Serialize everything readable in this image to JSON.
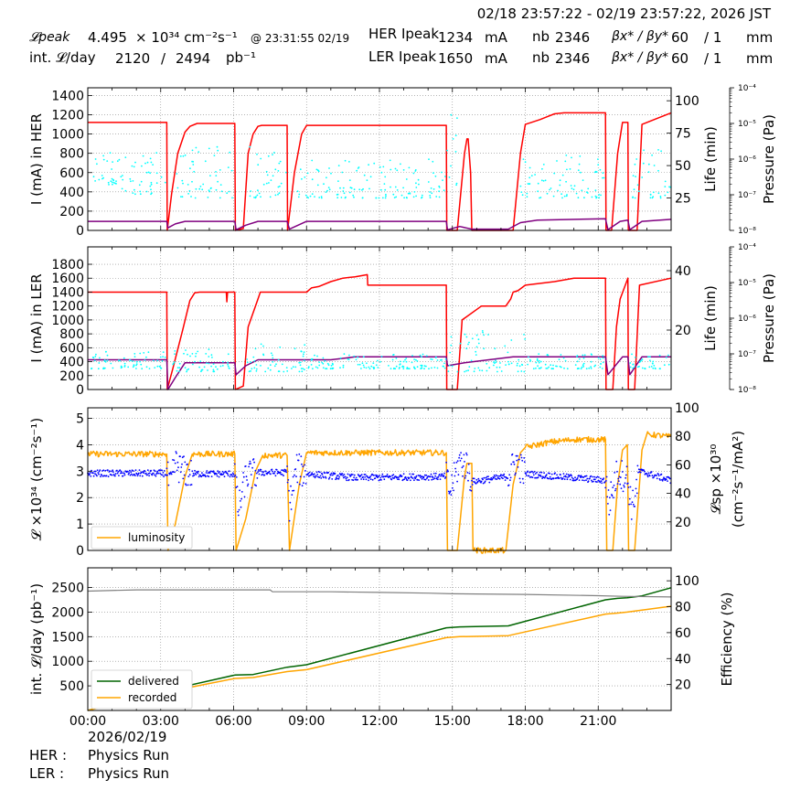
{
  "header": {
    "range": "02/18 23:57:22 - 02/19 23:57:22, 2026 JST",
    "lpeak_label": "𝓛peak",
    "lpeak_value": "4.495",
    "lpeak_unit": "× 10³⁴ cm⁻²s⁻¹",
    "lpeak_time": "@ 23:31:55 02/19",
    "intl_label": "int. 𝓛/day",
    "intl_value": "2120",
    "intl_sep": "/",
    "intl_value2": "2494",
    "intl_unit": "pb⁻¹",
    "her_label": "HER Ipeak",
    "her_value": "1234",
    "ler_label": "LER Ipeak",
    "ler_value": "1650",
    "ma": "mA",
    "nb_label": "nb",
    "her_nb": "2346",
    "ler_nb": "2346",
    "beta_label": "βx* / βy*",
    "her_beta": "60",
    "her_beta2": "/ 1",
    "ler_beta": "60",
    "ler_beta2": "/ 1",
    "mm": "mm"
  },
  "footer": {
    "date": "2026/02/19",
    "her_label": "HER :",
    "her_status": "Physics Run",
    "ler_label": "LER :",
    "ler_status": "Physics Run"
  },
  "x_ticks": [
    "00:00",
    "03:00",
    "06:00",
    "09:00",
    "12:00",
    "15:00",
    "18:00",
    "21:00"
  ],
  "colors": {
    "current": "#ff0000",
    "lifetime": "#800080",
    "pressure": "#00ffff",
    "luminosity": "#ffa500",
    "specific": "#0000ff",
    "delivered": "#006400",
    "recorded": "#ffa500",
    "efficiency": "#808080",
    "grid": "#888888"
  },
  "chart_data": [
    {
      "type": "line",
      "ylabel": "I (mA) in HER",
      "ylabel_right": "Life (min)",
      "ylabel_right2": "Pressure (Pa)",
      "xlim": [
        0,
        24
      ],
      "ylim": [
        0,
        1480
      ],
      "yticks": [
        0,
        200,
        400,
        600,
        800,
        1000,
        1200,
        1400
      ],
      "ylim_right": [
        0,
        110
      ],
      "yticks_right": [
        25,
        50,
        75,
        100
      ],
      "pressure_ticks": [
        "10⁻⁸",
        "10⁻⁷",
        "10⁻⁶",
        "10⁻⁵",
        "10⁻⁴"
      ],
      "series": [
        {
          "key": "current",
          "x": [
            0,
            3.25,
            3.27,
            3.45,
            3.7,
            4.0,
            4.2,
            4.5,
            6.05,
            6.07,
            6.4,
            6.6,
            6.8,
            7.0,
            7.15,
            8.2,
            8.22,
            8.5,
            8.8,
            9.0,
            14.75,
            14.77,
            15.2,
            15.5,
            15.6,
            15.65,
            15.75,
            15.8,
            17.3,
            17.5,
            17.8,
            18.0,
            18.6,
            19.2,
            19.6,
            21.3,
            21.32,
            21.55,
            21.8,
            22.0,
            22.22,
            22.24,
            22.6,
            22.8,
            24
          ],
          "y": [
            1120,
            1120,
            0,
            380,
            800,
            1020,
            1080,
            1110,
            1110,
            0,
            20,
            800,
            1000,
            1080,
            1090,
            1090,
            0,
            600,
            1000,
            1090,
            1090,
            0,
            0,
            800,
            950,
            950,
            600,
            0,
            0,
            0,
            800,
            1100,
            1150,
            1210,
            1220,
            1220,
            0,
            0,
            800,
            1120,
            1120,
            0,
            0,
            1100,
            1220
          ]
        },
        {
          "key": "lifetime",
          "x": [
            0,
            3.25,
            3.3,
            3.6,
            4.0,
            6.05,
            6.1,
            6.5,
            7.0,
            8.2,
            8.3,
            9.0,
            14.75,
            14.8,
            15.3,
            15.8,
            17.3,
            17.8,
            18.5,
            21.3,
            21.4,
            21.9,
            22.22,
            22.3,
            22.8,
            24
          ],
          "y": [
            7,
            7,
            2,
            5,
            7,
            7,
            0.5,
            4,
            7,
            7,
            1,
            7,
            7,
            0.5,
            3,
            1,
            1,
            6,
            8,
            9,
            0.5,
            7,
            8,
            0.5,
            7,
            8.5
          ]
        },
        {
          "key": "pressure",
          "band": [
            [
              0.1,
              1.4,
              35,
              60
            ],
            [
              1.4,
              3.2,
              28,
              60
            ],
            [
              3.6,
              6.0,
              25,
              65
            ],
            [
              6.6,
              8.2,
              25,
              65
            ],
            [
              8.6,
              14.7,
              25,
              55
            ],
            [
              14.7,
              15.2,
              35,
              90
            ],
            [
              17.8,
              21.3,
              25,
              60
            ],
            [
              22.4,
              24,
              25,
              70
            ]
          ]
        }
      ]
    },
    {
      "type": "line",
      "ylabel": "I (mA) in LER",
      "ylabel_right": "Life (min)",
      "ylabel_right2": "Pressure (Pa)",
      "xlim": [
        0,
        24
      ],
      "ylim": [
        0,
        2050
      ],
      "yticks": [
        0,
        200,
        400,
        600,
        800,
        1000,
        1200,
        1400,
        1600,
        1800
      ],
      "ylim_right": [
        0,
        48
      ],
      "yticks_right": [
        20,
        40
      ],
      "pressure_ticks": [
        "10⁻⁸",
        "10⁻⁷",
        "10⁻⁶",
        "10⁻⁵",
        "10⁻⁴"
      ],
      "series": [
        {
          "key": "current",
          "x": [
            0,
            3.25,
            3.27,
            3.5,
            3.9,
            4.2,
            4.4,
            4.6,
            5.7,
            5.72,
            5.75,
            6.05,
            6.07,
            6.4,
            6.6,
            7.0,
            7.1,
            9.0,
            9.2,
            9.5,
            10.0,
            10.5,
            11.0,
            11.5,
            11.52,
            14.75,
            14.77,
            15.2,
            15.4,
            16.2,
            17.2,
            17.4,
            17.5,
            17.7,
            18.0,
            19.2,
            20.0,
            21.3,
            21.32,
            21.6,
            21.75,
            21.9,
            22.22,
            22.24,
            22.5,
            22.7,
            24
          ],
          "y": [
            1400,
            1400,
            0,
            300,
            850,
            1280,
            1390,
            1400,
            1400,
            1260,
            1400,
            1400,
            0,
            50,
            900,
            1300,
            1400,
            1400,
            1460,
            1480,
            1550,
            1600,
            1620,
            1650,
            1500,
            1500,
            0,
            0,
            1000,
            1200,
            1200,
            1300,
            1400,
            1420,
            1500,
            1550,
            1600,
            1600,
            0,
            0,
            900,
            1300,
            1600,
            0,
            0,
            1500,
            1600
          ]
        },
        {
          "key": "lifetime",
          "x": [
            0,
            3.25,
            3.3,
            3.6,
            4.0,
            6.05,
            6.1,
            6.5,
            7.0,
            10.0,
            11.0,
            14.75,
            14.8,
            15.5,
            16.5,
            17.5,
            18.5,
            21.3,
            21.4,
            22.0,
            22.22,
            22.3,
            22.8,
            24
          ],
          "y": [
            10,
            10,
            0,
            4,
            9,
            9,
            5,
            8,
            10,
            10,
            11,
            11,
            8,
            9,
            10,
            11,
            11,
            11,
            5,
            11,
            11,
            5,
            11,
            11
          ]
        },
        {
          "key": "pressure",
          "band": [
            [
              0.1,
              3.2,
              7,
              13
            ],
            [
              3.5,
              6.0,
              6,
              14
            ],
            [
              6.5,
              9.0,
              6,
              16
            ],
            [
              9.0,
              14.7,
              7,
              12
            ],
            [
              14.7,
              15.0,
              6,
              20
            ],
            [
              15.2,
              18.0,
              6,
              22
            ],
            [
              18.0,
              21.3,
              7,
              12
            ],
            [
              22.3,
              24,
              7,
              12
            ]
          ]
        }
      ]
    },
    {
      "type": "line",
      "ylabel": "𝓛 ×10³⁴ (cm⁻²s⁻¹)",
      "ylabel_right": "𝓛sp ×10³⁰",
      "ylabel_right2": "(cm⁻²s⁻¹/mA²)",
      "xlim": [
        0,
        24
      ],
      "ylim": [
        0,
        5.4
      ],
      "yticks": [
        0,
        1,
        2,
        3,
        4,
        5
      ],
      "ylim_right": [
        0,
        100
      ],
      "yticks_right": [
        20,
        40,
        60,
        80,
        100
      ],
      "legend": {
        "placement": "lower-left",
        "entries": [
          "luminosity"
        ]
      },
      "series": [
        {
          "key": "luminosity",
          "name": "luminosity",
          "x": [
            0,
            3.25,
            3.3,
            3.6,
            4.0,
            4.3,
            6.05,
            6.1,
            6.5,
            6.9,
            7.2,
            8.2,
            8.3,
            8.7,
            9.0,
            14.75,
            14.8,
            15.2,
            15.5,
            15.6,
            15.8,
            15.85,
            17.2,
            17.5,
            17.8,
            18.0,
            19.0,
            20.0,
            21.3,
            21.35,
            21.6,
            21.8,
            22.0,
            22.2,
            22.25,
            22.5,
            22.8,
            23.0,
            24
          ],
          "y": [
            3.65,
            3.65,
            0,
            1.0,
            2.8,
            3.65,
            3.65,
            0,
            1.2,
            3.0,
            3.6,
            3.6,
            0,
            2.5,
            3.7,
            3.7,
            0,
            0,
            2.8,
            3.3,
            3.3,
            0,
            0,
            2.5,
            3.7,
            3.9,
            4.1,
            4.2,
            4.2,
            0,
            0,
            2.5,
            3.8,
            4.0,
            0,
            0,
            3.8,
            4.4,
            4.3
          ]
        },
        {
          "key": "specific",
          "x": [
            0,
            3.25,
            3.4,
            3.6,
            3.9,
            4.3,
            6.05,
            6.2,
            6.5,
            7.0,
            8.2,
            8.3,
            8.6,
            9.0,
            11.0,
            14.75,
            14.9,
            15.3,
            15.6,
            15.8,
            17.3,
            17.6,
            18.0,
            21.3,
            21.45,
            21.8,
            22.2,
            22.4,
            22.7,
            24
          ],
          "y": [
            2.92,
            2.92,
            2.4,
            3.3,
            3.0,
            2.9,
            2.9,
            1.5,
            2.8,
            2.95,
            2.95,
            1.7,
            3.1,
            2.9,
            2.75,
            2.8,
            2.2,
            3.4,
            3.2,
            2.6,
            2.8,
            3.4,
            2.9,
            2.65,
            1.8,
            3.0,
            2.7,
            1.6,
            3.0,
            2.65
          ]
        }
      ]
    },
    {
      "type": "line",
      "ylabel": "int. 𝓛/day (pb⁻¹)",
      "ylabel_right": "Efficiency (%)",
      "xlabel": "2026/02/19",
      "xlim": [
        0,
        24
      ],
      "ylim": [
        0,
        2900
      ],
      "yticks": [
        500,
        1000,
        1500,
        2000,
        2500
      ],
      "ylim_right": [
        0,
        110
      ],
      "yticks_right": [
        20,
        40,
        60,
        80,
        100
      ],
      "legend": {
        "placement": "lower-left",
        "entries": [
          "delivered",
          "recorded"
        ]
      },
      "series": [
        {
          "key": "delivered",
          "name": "delivered",
          "x": [
            0,
            3.25,
            3.7,
            6.05,
            6.8,
            8.2,
            9.0,
            14.75,
            15.3,
            17.3,
            21.3,
            21.8,
            22.2,
            22.8,
            24
          ],
          "y": [
            0,
            430,
            460,
            720,
            730,
            880,
            930,
            1680,
            1700,
            1720,
            2250,
            2280,
            2290,
            2330,
            2494
          ]
        },
        {
          "key": "recorded",
          "name": "recorded",
          "x": [
            0,
            3.25,
            3.7,
            6.05,
            6.8,
            8.2,
            9.0,
            14.75,
            15.3,
            17.3,
            21.3,
            21.8,
            22.2,
            22.8,
            24
          ],
          "y": [
            0,
            400,
            420,
            650,
            670,
            790,
            830,
            1480,
            1500,
            1520,
            1960,
            1980,
            2000,
            2040,
            2120
          ]
        },
        {
          "key": "efficiency",
          "x": [
            0,
            2.0,
            4.0,
            6.0,
            7.5,
            7.6,
            10.0,
            12.0,
            14.0,
            15.0,
            18.0,
            21.0,
            22.0,
            24
          ],
          "y": [
            92,
            93,
            93,
            93,
            93,
            91.5,
            91.5,
            91,
            90.5,
            90,
            89.5,
            88.5,
            88,
            87.5
          ]
        }
      ]
    }
  ]
}
